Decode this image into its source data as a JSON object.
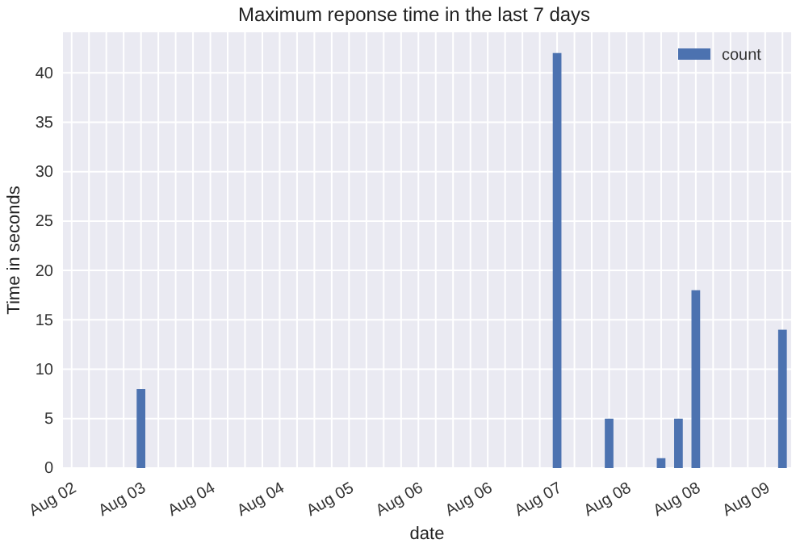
{
  "chart_data": {
    "type": "bar",
    "title": "Maximum reponse time in the last 7 days",
    "xlabel": "date",
    "ylabel": "Time in seconds",
    "categories": [
      "Aug 02",
      null,
      null,
      null,
      "Aug 03",
      null,
      null,
      null,
      "Aug 04",
      null,
      null,
      null,
      "Aug 04",
      null,
      null,
      null,
      "Aug 05",
      null,
      null,
      null,
      "Aug 06",
      null,
      null,
      null,
      "Aug 06",
      null,
      null,
      null,
      "Aug 07",
      null,
      null,
      null,
      "Aug 08",
      null,
      null,
      null,
      "Aug 08",
      null,
      null,
      null,
      "Aug 09",
      null
    ],
    "series": [
      {
        "name": "count",
        "color": "#4c72b0",
        "values": [
          0,
          0,
          0,
          0,
          8,
          0,
          0,
          0,
          0,
          0,
          0,
          0,
          0,
          0,
          0,
          0,
          0,
          0,
          0,
          0,
          0,
          0,
          0,
          0,
          0,
          0,
          0,
          0,
          42,
          0,
          0,
          5,
          0,
          0,
          1,
          5,
          18,
          0,
          0,
          0,
          0,
          14
        ]
      }
    ],
    "ylim": [
      0,
      44.1
    ],
    "yticks": [
      0,
      5,
      10,
      15,
      20,
      25,
      30,
      35,
      40
    ],
    "grid": true,
    "legend": "top right"
  }
}
